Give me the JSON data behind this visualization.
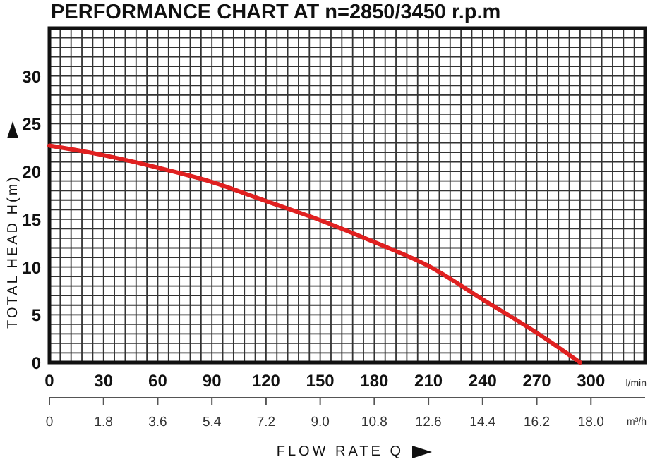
{
  "chart_data": {
    "type": "line",
    "title": "PERFORMANCE CHART AT n=2850/3450 r.p.m",
    "xlabel": "FLOW RATE Q",
    "ylabel": "TOTAL HEAD H(m)",
    "x": [
      0,
      30,
      60,
      90,
      120,
      150,
      180,
      210,
      240,
      270,
      294
    ],
    "series": [
      {
        "color": "#e02020",
        "values": [
          22.7,
          21.7,
          20.4,
          18.9,
          16.9,
          14.9,
          12.6,
          10.1,
          6.6,
          3.1,
          0
        ]
      }
    ],
    "xlim": [
      0,
      330
    ],
    "xticks": [
      0,
      {
        "value": 6,
        "label": null
      },
      {
        "value": 12,
        "label": null
      },
      {
        "value": 18,
        "label": null
      },
      {
        "value": 24,
        "label": null
      },
      30,
      {
        "value": 36,
        "label": null
      },
      {
        "value": 42,
        "label": null
      },
      {
        "value": 48,
        "label": null
      },
      {
        "value": 54,
        "label": null
      },
      60,
      {
        "value": 66,
        "label": null
      },
      {
        "value": 72,
        "label": null
      },
      {
        "value": 78,
        "label": null
      },
      {
        "value": 84,
        "label": null
      },
      90,
      {
        "value": 96,
        "label": null
      },
      {
        "value": 102,
        "label": null
      },
      {
        "value": 108,
        "label": null
      },
      {
        "value": 114,
        "label": null
      },
      120,
      {
        "value": 126,
        "label": null
      },
      {
        "value": 132,
        "label": null
      },
      {
        "value": 138,
        "label": null
      },
      {
        "value": 144,
        "label": null
      },
      150,
      {
        "value": 156,
        "label": null
      },
      {
        "value": 162,
        "label": null
      },
      {
        "value": 168,
        "label": null
      },
      {
        "value": 174,
        "label": null
      },
      180,
      {
        "value": 186,
        "label": null
      },
      {
        "value": 192,
        "label": null
      },
      {
        "value": 198,
        "label": null
      },
      {
        "value": 204,
        "label": null
      },
      210,
      {
        "value": 216,
        "label": null
      },
      {
        "value": 222,
        "label": null
      },
      {
        "value": 228,
        "label": null
      },
      {
        "value": 234,
        "label": null
      },
      240,
      {
        "value": 246,
        "label": null
      },
      {
        "value": 252,
        "label": null
      },
      {
        "value": 258,
        "label": null
      },
      {
        "value": 264,
        "label": null
      },
      270,
      {
        "value": 276,
        "label": null
      },
      {
        "value": 282,
        "label": null
      },
      {
        "value": 288,
        "label": null
      },
      {
        "value": 294,
        "label": null
      },
      300,
      {
        "value": 306,
        "label": null
      },
      {
        "value": 312,
        "label": null
      },
      {
        "value": 318,
        "label": null
      },
      {
        "value": 324,
        "label": null
      }
    ],
    "ylim": [
      0,
      35
    ],
    "yticks": [
      0,
      {
        "value": 1,
        "label": null
      },
      {
        "value": 2,
        "label": null
      },
      {
        "value": 3,
        "label": null
      },
      {
        "value": 4,
        "label": null
      },
      5,
      {
        "value": 6,
        "label": null
      },
      {
        "value": 7,
        "label": null
      },
      {
        "value": 8,
        "label": null
      },
      {
        "value": 9,
        "label": null
      },
      10,
      {
        "value": 11,
        "label": null
      },
      {
        "value": 12,
        "label": null
      },
      {
        "value": 13,
        "label": null
      },
      {
        "value": 14,
        "label": null
      },
      15,
      {
        "value": 16,
        "label": null
      },
      {
        "value": 17,
        "label": null
      },
      {
        "value": 18,
        "label": null
      },
      {
        "value": 19,
        "label": null
      },
      20,
      {
        "value": 21,
        "label": null
      },
      {
        "value": 22,
        "label": null
      },
      {
        "value": 23,
        "label": null
      },
      {
        "value": 24,
        "label": null
      },
      25,
      {
        "value": 26,
        "label": null
      },
      {
        "value": 27,
        "label": null
      },
      {
        "value": 28,
        "label": null
      },
      {
        "value": 29,
        "label": null
      },
      30,
      {
        "value": 31,
        "label": null
      },
      {
        "value": 32,
        "label": null
      },
      {
        "value": 33,
        "label": null
      },
      {
        "value": 34,
        "label": null
      }
    ],
    "x2lim": [
      0,
      19.8
    ],
    "x2ticks": [
      0,
      1.8,
      3.6,
      5.4,
      7.2,
      {
        "value": 9,
        "label": "9.0"
      },
      10.8,
      12.6,
      14.4,
      16.2,
      {
        "value": 18,
        "label": "18.0"
      }
    ],
    "annotations": [
      "l/min",
      "m³/h"
    ],
    "grid": true,
    "marker": "none",
    "line_style": "solid"
  }
}
